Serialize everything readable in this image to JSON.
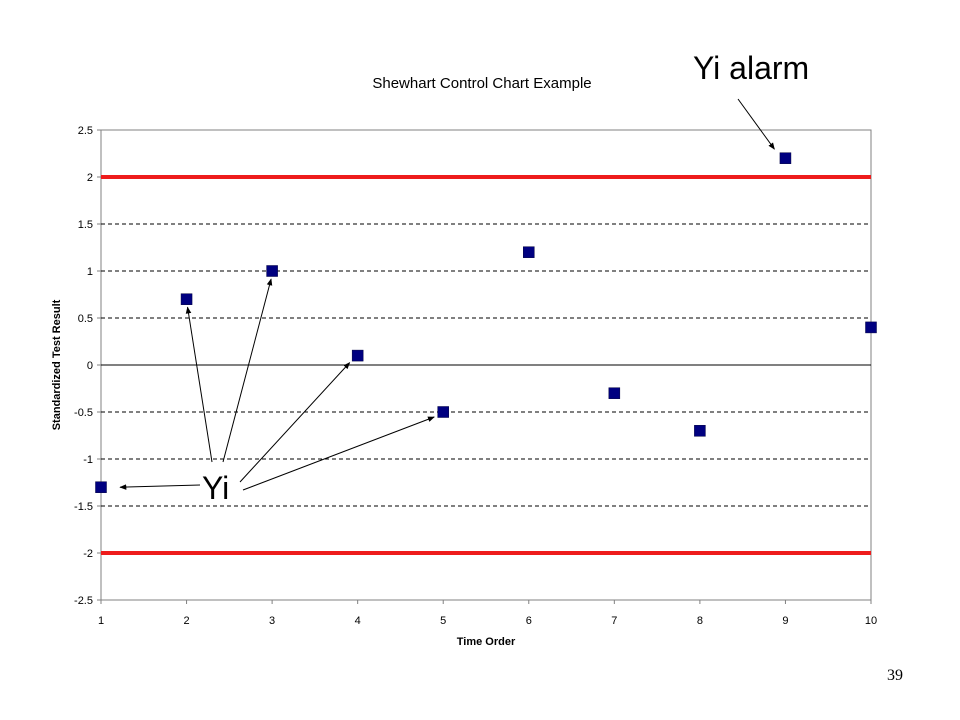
{
  "chart_data": {
    "type": "scatter",
    "title": "Shewhart Control Chart Example",
    "xlabel": "Time Order",
    "ylabel": "Standardized Test Result",
    "xlim": [
      1,
      10
    ],
    "ylim": [
      -2.5,
      2.5
    ],
    "x_ticks": [
      "1",
      "2",
      "3",
      "4",
      "5",
      "6",
      "7",
      "8",
      "9",
      "10"
    ],
    "y_ticks": [
      "2.5",
      "2",
      "1.5",
      "1",
      "0.5",
      "0",
      "-0.5",
      "-1",
      "-1.5",
      "-2",
      "-2.5"
    ],
    "grid": "horizontal dashed",
    "control_limits": {
      "upper": 2,
      "lower": -2,
      "color": "#ee1c1c"
    },
    "marker_color": "#000080",
    "series": [
      {
        "x": [
          1,
          2,
          3,
          4,
          5,
          6,
          7,
          8,
          9,
          10
        ],
        "values": [
          -1.3,
          0.7,
          1.0,
          0.1,
          -0.5,
          1.2,
          -0.3,
          -0.7,
          2.2,
          0.4
        ]
      }
    ]
  },
  "annotations": {
    "yi_label": "Yi",
    "alarm_label": "Yi alarm"
  },
  "page_number": "39"
}
